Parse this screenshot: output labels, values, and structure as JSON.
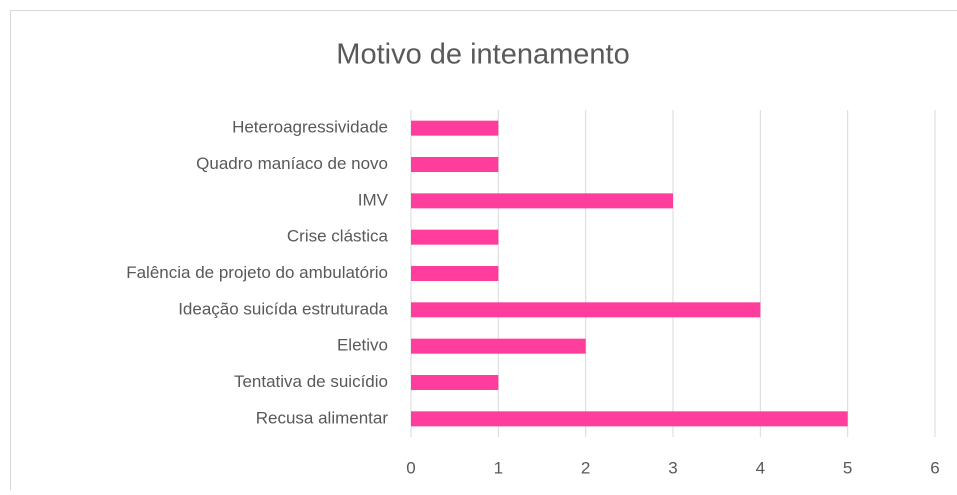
{
  "chart_data": {
    "type": "barh",
    "title": "Motivo de intenamento",
    "categories": [
      "Heteroagressividade",
      "Quadro maníaco de novo",
      "IMV",
      "Crise clástica",
      "Falência de projeto do ambulatório",
      "Ideação suicída estruturada",
      "Eletivo",
      "Tentativa de suicídio",
      "Recusa alimentar"
    ],
    "values": [
      1,
      1,
      3,
      1,
      1,
      4,
      2,
      1,
      5
    ],
    "color": "#ff3d9d",
    "xlim": [
      0,
      6
    ],
    "xticks": [
      0,
      1,
      2,
      3,
      4,
      5,
      6
    ],
    "grid": true
  }
}
